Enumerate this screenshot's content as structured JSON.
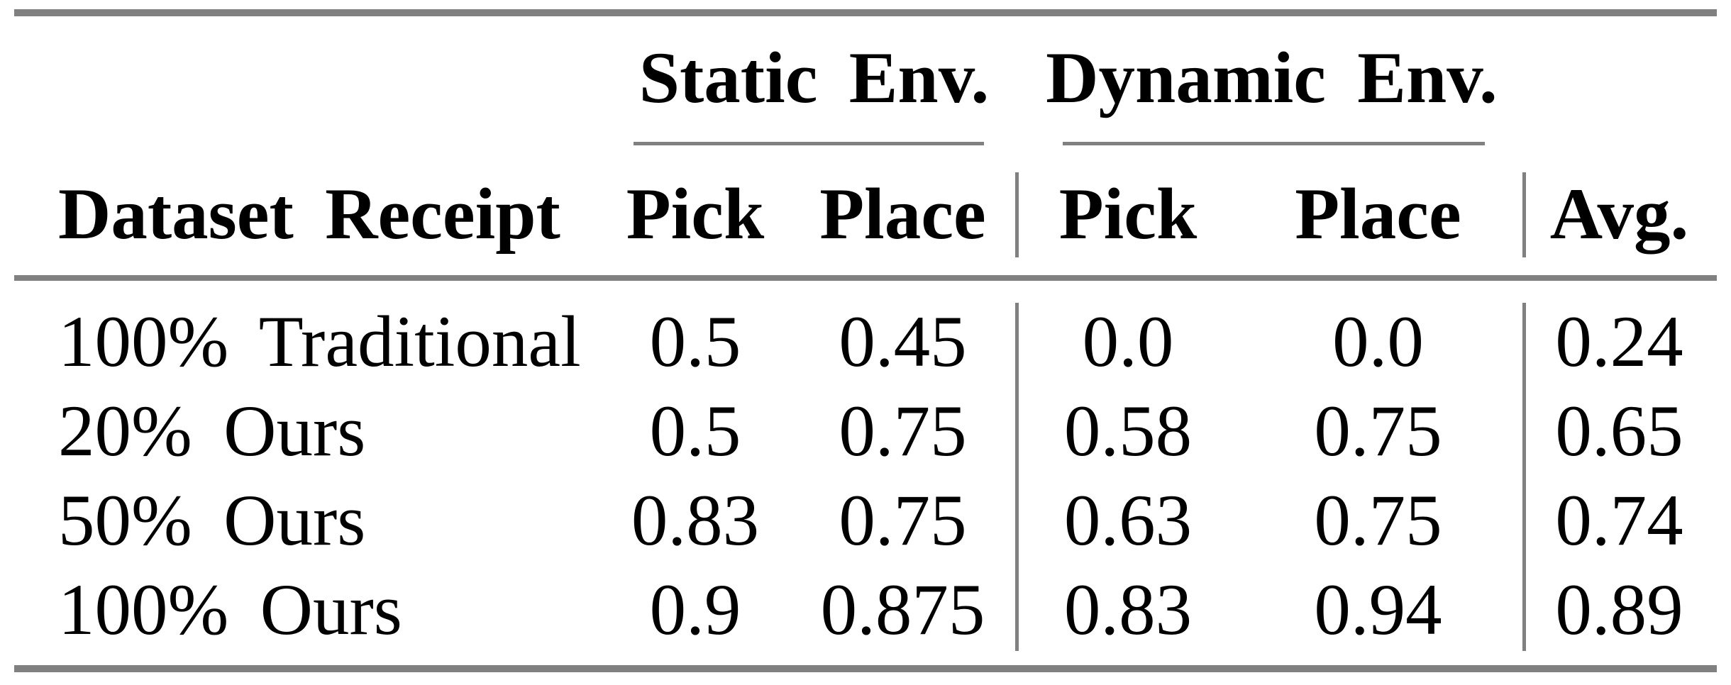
{
  "header": {
    "group_static": "Static Env.",
    "group_dynamic": "Dynamic Env.",
    "dataset_col": "Dataset Receipt",
    "static_pick": "Pick",
    "static_place": "Place",
    "dynamic_pick": "Pick",
    "dynamic_place": "Place",
    "avg": "Avg."
  },
  "rows": [
    {
      "label": "100% Traditional",
      "static_pick": "0.5",
      "static_place": "0.45",
      "dynamic_pick": "0.0",
      "dynamic_place": "0.0",
      "avg": "0.24"
    },
    {
      "label": "20% Ours",
      "static_pick": "0.5",
      "static_place": "0.75",
      "dynamic_pick": "0.58",
      "dynamic_place": "0.75",
      "avg": "0.65"
    },
    {
      "label": "50% Ours",
      "static_pick": "0.83",
      "static_place": "0.75",
      "dynamic_pick": "0.63",
      "dynamic_place": "0.75",
      "avg": "0.74"
    },
    {
      "label": "100% Ours",
      "static_pick": "0.9",
      "static_place": "0.875",
      "dynamic_pick": "0.83",
      "dynamic_place": "0.94",
      "avg": "0.89"
    }
  ],
  "colors": {
    "rule_gray": "#808080",
    "text": "#000000",
    "background": "#ffffff"
  }
}
